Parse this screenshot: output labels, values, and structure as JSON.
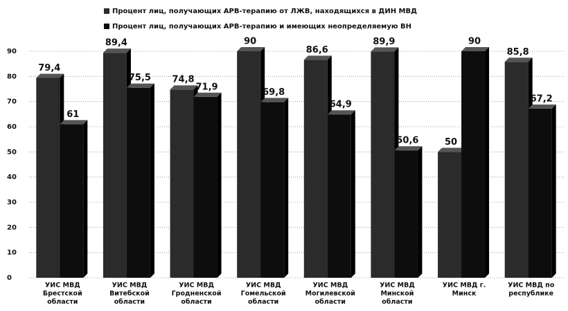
{
  "chart_data": {
    "type": "bar",
    "categories": [
      [
        "УИС МВД",
        "Брестской",
        "области"
      ],
      [
        "УИС МВД",
        "Витебской",
        "области"
      ],
      [
        "УИС МВД",
        "Гродненской",
        "области"
      ],
      [
        "УИС МВД",
        "Гомельской",
        "области"
      ],
      [
        "УИС МВД",
        "Могилевской",
        "области"
      ],
      [
        "УИС МВД",
        "Минской",
        "области"
      ],
      [
        "УИС МВД г.",
        "Минск"
      ],
      [
        "УИС МВД по",
        "республике"
      ]
    ],
    "series": [
      {
        "name": "Процент лиц, получающих АРВ-терапию от ЛЖВ, находящихся в ДИН МВД",
        "color": "#2b2b2b",
        "values": [
          79.4,
          89.4,
          74.8,
          90,
          86.6,
          89.9,
          50,
          85.8
        ],
        "value_labels": [
          "79,4",
          "89,4",
          "74,8",
          "90",
          "86,6",
          "89,9",
          "50",
          "85,8"
        ]
      },
      {
        "name": "Процент лиц, получающих АРВ-терапию и имеющих неопределяемую ВН",
        "color": "#0d0d0d",
        "values": [
          61,
          75.5,
          71.9,
          69.8,
          64.9,
          50.6,
          90,
          67.2
        ],
        "value_labels": [
          "61",
          "75,5",
          "71,9",
          "69,8",
          "64,9",
          "50,6",
          "90",
          "67,2"
        ]
      }
    ],
    "ylim": [
      0,
      90
    ],
    "yticks": [
      0,
      10,
      20,
      30,
      40,
      50,
      60,
      70,
      80,
      90
    ],
    "grid": true,
    "legend": "top"
  }
}
